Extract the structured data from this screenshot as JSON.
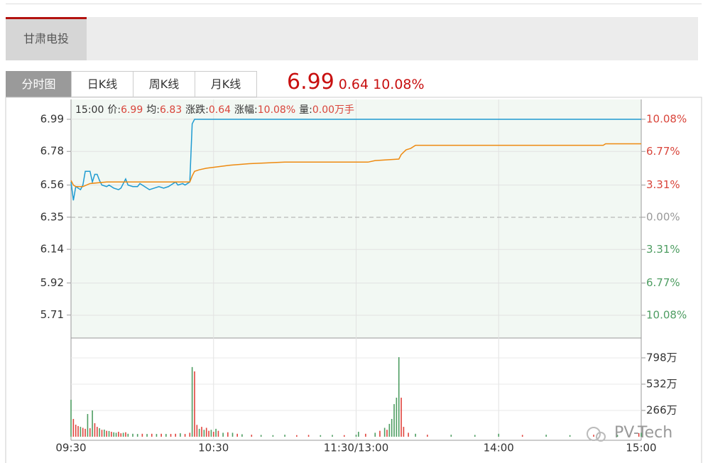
{
  "tabs": [
    "甘肃电投"
  ],
  "buttons": [
    "分时图",
    "日K线",
    "周K线",
    "月K线"
  ],
  "quote": {
    "price": "6.99",
    "change": "0.64",
    "change_pct": "10.08%"
  },
  "watermark": "PV-Tech",
  "chart_data": {
    "type": "line",
    "info_time": "15:00",
    "info": [
      {
        "label": "价:",
        "value": "6.99"
      },
      {
        "label": "均:",
        "value": "6.83"
      },
      {
        "label": "涨跌:",
        "value": "0.64"
      },
      {
        "label": "涨幅:",
        "value": "10.08%"
      },
      {
        "label": "量:",
        "value": "0.00万手"
      }
    ],
    "xlim": [
      0,
      240
    ],
    "xticks": [
      {
        "value": 0,
        "label": "09:30"
      },
      {
        "value": 60,
        "label": "10:30"
      },
      {
        "value": 120,
        "label": "11:30/13:00"
      },
      {
        "value": 180,
        "label": "14:00"
      },
      {
        "value": 240,
        "label": "15:00"
      }
    ],
    "ylim": [
      5.56,
      7.12
    ],
    "yticks": [
      5.71,
      5.92,
      6.14,
      6.35,
      6.56,
      6.78,
      6.99
    ],
    "y2lim": [
      -12.42,
      12.12
    ],
    "y2ticks": [
      {
        "value": -10.08,
        "label": "10.08%"
      },
      {
        "value": -6.77,
        "label": "6.77%"
      },
      {
        "value": -3.31,
        "label": "3.31%"
      },
      {
        "value": 0,
        "label": "0.00%"
      },
      {
        "value": 3.31,
        "label": "3.31%"
      },
      {
        "value": 6.77,
        "label": "6.77%"
      },
      {
        "value": 10.08,
        "label": "10.08%"
      }
    ],
    "grid": true,
    "series": [
      {
        "color": "#1f9bd1",
        "x": [
          0,
          1,
          2,
          4,
          5,
          6,
          8,
          9,
          10,
          11,
          12,
          13,
          15,
          16,
          18,
          20,
          21,
          23,
          24,
          26,
          28,
          29,
          31,
          33,
          35,
          37,
          39,
          41,
          42,
          44,
          45,
          47,
          48,
          50,
          51,
          52,
          240
        ],
        "values": [
          6.58,
          6.46,
          6.55,
          6.53,
          6.56,
          6.65,
          6.65,
          6.58,
          6.63,
          6.63,
          6.59,
          6.56,
          6.55,
          6.56,
          6.54,
          6.53,
          6.54,
          6.6,
          6.56,
          6.55,
          6.55,
          6.57,
          6.55,
          6.53,
          6.54,
          6.55,
          6.54,
          6.55,
          6.56,
          6.58,
          6.56,
          6.57,
          6.56,
          6.58,
          6.96,
          6.99,
          6.99
        ]
      },
      {
        "color": "#ee8a10",
        "x": [
          0,
          1,
          2,
          5,
          8,
          15,
          50,
          51,
          52,
          54,
          57,
          62,
          67,
          75,
          90,
          125,
          128,
          138,
          139,
          141,
          143,
          145,
          224,
          225,
          240
        ],
        "values": [
          6.59,
          6.56,
          6.55,
          6.55,
          6.57,
          6.58,
          6.58,
          6.62,
          6.65,
          6.66,
          6.67,
          6.68,
          6.69,
          6.7,
          6.71,
          6.71,
          6.72,
          6.73,
          6.76,
          6.79,
          6.8,
          6.82,
          6.82,
          6.83,
          6.83
        ]
      }
    ],
    "volume": {
      "ylim": [
        0,
        970
      ],
      "yticks": [
        {
          "value": 266,
          "label": "266万"
        },
        {
          "value": 532,
          "label": "532万"
        },
        {
          "value": 798,
          "label": "798万"
        }
      ],
      "x": [
        0,
        1,
        2,
        3,
        4,
        5,
        6,
        7,
        8,
        9,
        10,
        11,
        12,
        13,
        14,
        15,
        16,
        17,
        18,
        19,
        20,
        21,
        22,
        23,
        24,
        26,
        28,
        30,
        32,
        34,
        36,
        38,
        40,
        42,
        44,
        46,
        48,
        50,
        51,
        52,
        53,
        54,
        55,
        56,
        57,
        58,
        59,
        60,
        61,
        62,
        64,
        66,
        68,
        70,
        72,
        76,
        80,
        85,
        90,
        95,
        100,
        105,
        110,
        115,
        120,
        121,
        124,
        128,
        130,
        132,
        133,
        134,
        135,
        136,
        137,
        138,
        139,
        140,
        142,
        145,
        150,
        160,
        170,
        180,
        190,
        200,
        210,
        220,
        230,
        239,
        240
      ],
      "values": [
        374,
        180,
        122,
        108,
        100,
        90,
        80,
        230,
        86,
        266,
        137,
        100,
        86,
        70,
        72,
        60,
        58,
        50,
        45,
        40,
        50,
        35,
        40,
        45,
        30,
        30,
        28,
        30,
        28,
        30,
        28,
        30,
        28,
        28,
        30,
        35,
        28,
        40,
        705,
        661,
        120,
        80,
        100,
        70,
        90,
        60,
        70,
        50,
        80,
        60,
        40,
        45,
        40,
        30,
        25,
        20,
        18,
        16,
        20,
        16,
        18,
        16,
        18,
        16,
        20,
        50,
        30,
        40,
        60,
        90,
        70,
        130,
        180,
        330,
        395,
        805,
        395,
        100,
        40,
        30,
        20,
        20,
        18,
        30,
        18,
        20,
        16,
        20,
        18,
        36,
        40
      ],
      "colors": [
        "#4e9d62",
        "#e0443d",
        "#e0443d",
        "#e0443d",
        "#4e9d62",
        "#e0443d",
        "#e0443d",
        "#4e9d62",
        "#e0443d",
        "#4e9d62",
        "#e0443d",
        "#e0443d",
        "#4e9d62",
        "#e0443d",
        "#4e9d62",
        "#e0443d",
        "#4e9d62",
        "#e0443d",
        "#4e9d62",
        "#4e9d62",
        "#e0443d",
        "#e0443d",
        "#4e9d62",
        "#e0443d",
        "#4e9d62",
        "#4e9d62",
        "#4e9d62",
        "#e0443d",
        "#4e9d62",
        "#e0443d",
        "#4e9d62",
        "#e0443d",
        "#4e9d62",
        "#e0443d",
        "#e0443d",
        "#4e9d62",
        "#e0443d",
        "#e0443d",
        "#4e9d62",
        "#e0443d",
        "#e0443d",
        "#4e9d62",
        "#e0443d",
        "#4e9d62",
        "#e0443d",
        "#e0443d",
        "#4e9d62",
        "#e0443d",
        "#4e9d62",
        "#e0443d",
        "#4e9d62",
        "#e0443d",
        "#4e9d62",
        "#e0443d",
        "#4e9d62",
        "#e0443d",
        "#4e9d62",
        "#4e9d62",
        "#4e9d62",
        "#e0443d",
        "#e0443d",
        "#4e9d62",
        "#4e9d62",
        "#e0443d",
        "#4e9d62",
        "#4e9d62",
        "#e0443d",
        "#4e9d62",
        "#e0443d",
        "#4e9d62",
        "#e0443d",
        "#4e9d62",
        "#4e9d62",
        "#4e9d62",
        "#4e9d62",
        "#4e9d62",
        "#e0443d",
        "#e0443d",
        "#e0443d",
        "#4e9d62",
        "#e0443d",
        "#4e9d62",
        "#4e9d62",
        "#4e9d62",
        "#e0443d",
        "#4e9d62",
        "#4e9d62",
        "#e0443d",
        "#4e9d62",
        "#e0443d",
        "#4e9d62"
      ]
    }
  }
}
